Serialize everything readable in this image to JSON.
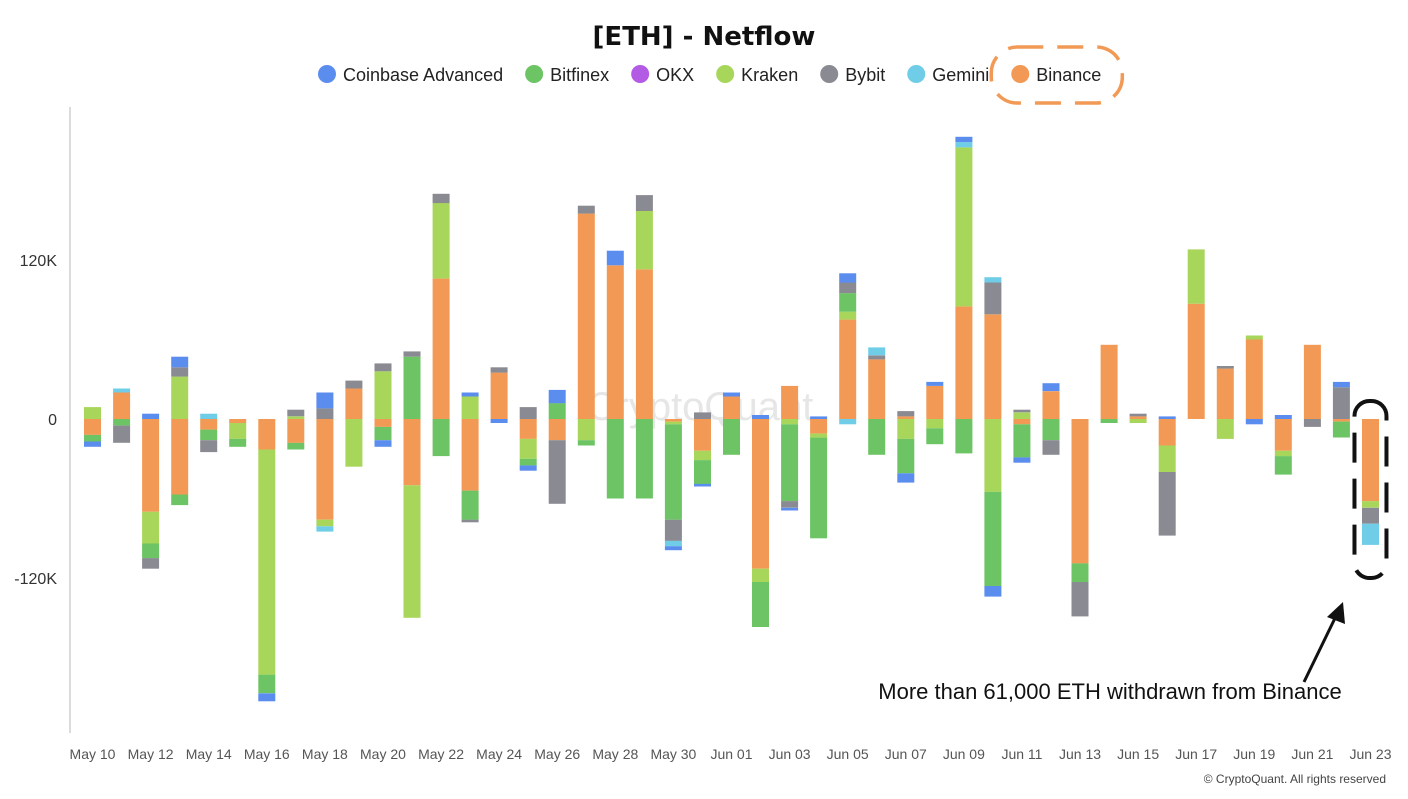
{
  "colors": {
    "Coinbase Advanced": "#5B8DEF",
    "Bitfinex": "#6CC464",
    "OKX": "#B35BE5",
    "Kraken": "#A8D65A",
    "Bybit": "#8A8A92",
    "Gemini": "#6FCDE8",
    "Binance": "#F29A55"
  },
  "watermark": "CryptoQuant",
  "credit": "© CryptoQuant. All rights reserved",
  "annotation": "More than 61,000 ETH withdrawn from Binance",
  "chart_data": {
    "type": "bar",
    "stacked": true,
    "title": "[ETH] - Netflow",
    "legend_position": "top-center",
    "grid": false,
    "ylim": [
      -230000,
      235000
    ],
    "yticks": [
      {
        "value": 120000,
        "label": "120K"
      },
      {
        "value": 0,
        "label": "0"
      },
      {
        "value": -120000,
        "label": "-120K"
      }
    ],
    "series_order": [
      "Binance",
      "Kraken",
      "Bitfinex",
      "Bybit",
      "Gemini",
      "OKX",
      "Coinbase Advanced"
    ],
    "legend": [
      "Coinbase Advanced",
      "Bitfinex",
      "OKX",
      "Kraken",
      "Bybit",
      "Gemini",
      "Binance"
    ],
    "highlighted_series": "Binance",
    "highlighted_date": "Jun 23",
    "categories": [
      "May 10",
      "May 11",
      "May 12",
      "May 13",
      "May 14",
      "May 15",
      "May 16",
      "May 17",
      "May 18",
      "May 19",
      "May 20",
      "May 21",
      "May 22",
      "May 23",
      "May 24",
      "May 25",
      "May 26",
      "May 27",
      "May 28",
      "May 29",
      "May 30",
      "May 31",
      "Jun 01",
      "Jun 02",
      "Jun 03",
      "Jun 04",
      "Jun 05",
      "Jun 06",
      "Jun 07",
      "Jun 08",
      "Jun 09",
      "Jun 10",
      "Jun 11",
      "Jun 12",
      "Jun 13",
      "Jun 14",
      "Jun 15",
      "Jun 16",
      "Jun 17",
      "Jun 18",
      "Jun 19",
      "Jun 20",
      "Jun 21",
      "Jun 22",
      "Jun 23"
    ],
    "x_tick_labels": [
      "May 10",
      "May 12",
      "May 14",
      "May 16",
      "May 18",
      "May 20",
      "May 22",
      "May 24",
      "May 26",
      "May 28",
      "May 30",
      "Jun 01",
      "Jun 03",
      "Jun 05",
      "Jun 07",
      "Jun 09",
      "Jun 11",
      "Jun 13",
      "Jun 15",
      "Jun 17",
      "Jun 19",
      "Jun 21",
      "Jun 23"
    ],
    "series": [
      {
        "name": "Binance",
        "values": [
          -12000,
          20000,
          -70000,
          -57000,
          -8000,
          -3000,
          -23000,
          -18000,
          -76000,
          23000,
          -6000,
          -50000,
          106000,
          -54000,
          35000,
          -15000,
          -16000,
          155000,
          116000,
          113000,
          -2000,
          -24000,
          17000,
          -113000,
          25000,
          -11000,
          75000,
          45000,
          2000,
          25000,
          85000,
          79000,
          -4000,
          21000,
          -109000,
          56000,
          2000,
          -20000,
          87000,
          38000,
          60000,
          -24000,
          56000,
          -2000,
          -62000
        ]
      },
      {
        "name": "Kraken",
        "values": [
          9000,
          0,
          -24000,
          32000,
          0,
          -12000,
          -170000,
          2000,
          -5000,
          -36000,
          36000,
          -100000,
          57000,
          17000,
          0,
          -15000,
          0,
          -16000,
          0,
          44000,
          -2000,
          -7000,
          0,
          -10000,
          -4000,
          -3000,
          6000,
          0,
          -15000,
          -7000,
          120000,
          -55000,
          5000,
          0,
          0,
          0,
          -3000,
          -20000,
          41000,
          -15000,
          3000,
          -4000,
          0,
          0,
          -5000
        ]
      },
      {
        "name": "Bitfinex",
        "values": [
          -5000,
          -5000,
          -11000,
          -8000,
          -8000,
          -6000,
          -14000,
          -5000,
          0,
          0,
          -10000,
          47000,
          -28000,
          -22000,
          0,
          -5000,
          12000,
          -4000,
          -60000,
          -60000,
          -72000,
          -18000,
          -27000,
          -34000,
          -58000,
          -76000,
          14000,
          -27000,
          -26000,
          -12000,
          -26000,
          -71000,
          -25000,
          -16000,
          -14000,
          -3000,
          0,
          0,
          0,
          0,
          0,
          -14000,
          0,
          -12000,
          0
        ]
      },
      {
        "name": "Bybit",
        "values": [
          0,
          -13000,
          -8000,
          7000,
          -9000,
          0,
          0,
          5000,
          8000,
          6000,
          6000,
          4000,
          7000,
          -2000,
          4000,
          9000,
          -48000,
          6000,
          0,
          12000,
          -16000,
          5000,
          0,
          0,
          -5000,
          0,
          8000,
          3000,
          4000,
          0,
          0,
          24000,
          2000,
          -11000,
          -26000,
          0,
          2000,
          -48000,
          0,
          2000,
          0,
          0,
          -6000,
          24000,
          -12000
        ]
      },
      {
        "name": "Gemini",
        "values": [
          0,
          3000,
          0,
          0,
          4000,
          0,
          0,
          0,
          -4000,
          0,
          0,
          0,
          0,
          0,
          0,
          0,
          0,
          0,
          0,
          0,
          -4000,
          0,
          0,
          0,
          0,
          0,
          -4000,
          6000,
          0,
          0,
          4000,
          4000,
          0,
          0,
          0,
          0,
          0,
          0,
          0,
          0,
          0,
          0,
          0,
          0,
          -16000
        ]
      },
      {
        "name": "OKX",
        "values": [
          0,
          0,
          0,
          0,
          0,
          0,
          0,
          0,
          0,
          0,
          0,
          0,
          0,
          0,
          0,
          0,
          0,
          0,
          0,
          0,
          0,
          0,
          0,
          0,
          0,
          0,
          0,
          0,
          0,
          0,
          0,
          0,
          0,
          0,
          0,
          0,
          0,
          0,
          0,
          0,
          0,
          0,
          0,
          0,
          0
        ]
      },
      {
        "name": "Coinbase Advanced",
        "values": [
          -4000,
          0,
          4000,
          8000,
          0,
          0,
          -6000,
          0,
          12000,
          0,
          -5000,
          0,
          0,
          3000,
          -3000,
          -4000,
          10000,
          0,
          11000,
          0,
          -3000,
          -2000,
          3000,
          3000,
          -2000,
          2000,
          7000,
          0,
          -7000,
          3000,
          4000,
          -8000,
          -4000,
          6000,
          0,
          0,
          0,
          2000,
          0,
          0,
          -4000,
          3000,
          0,
          4000,
          0
        ]
      }
    ]
  }
}
